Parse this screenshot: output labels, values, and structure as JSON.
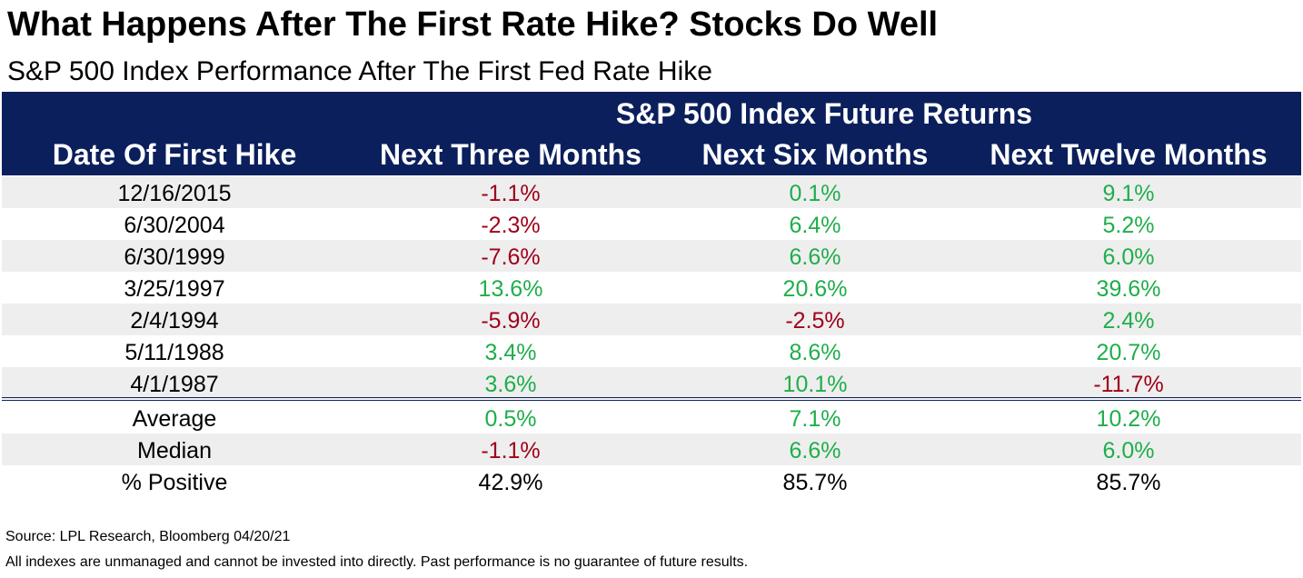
{
  "chart_data": {
    "type": "table",
    "title": "What Happens After The First Rate Hike? Stocks Do Well",
    "subtitle": "S&P 500 Index Performance After The First Fed Rate Hike",
    "group_header": "S&P 500 Index Future Returns",
    "columns": [
      "Date Of First Hike",
      "Next Three Months",
      "Next Six Months",
      "Next Twelve Months"
    ],
    "rows": [
      [
        "12/16/2015",
        "-1.1%",
        "0.1%",
        "9.1%"
      ],
      [
        "6/30/2004",
        "-2.3%",
        "6.4%",
        "5.2%"
      ],
      [
        "6/30/1999",
        "-7.6%",
        "6.6%",
        "6.0%"
      ],
      [
        "3/25/1997",
        "13.6%",
        "20.6%",
        "39.6%"
      ],
      [
        "2/4/1994",
        "-5.9%",
        "-2.5%",
        "2.4%"
      ],
      [
        "5/11/1988",
        "3.4%",
        "8.6%",
        "20.7%"
      ],
      [
        "4/1/1987",
        "3.6%",
        "10.1%",
        "-11.7%"
      ]
    ],
    "summary_rows": [
      [
        "Average",
        "0.5%",
        "7.1%",
        "10.2%"
      ],
      [
        "Median",
        "-1.1%",
        "6.6%",
        "6.0%"
      ],
      [
        "% Positive",
        "42.9%",
        "85.7%",
        "85.7%"
      ]
    ],
    "colors": {
      "header_bg": "#0b1f5c",
      "positive": "#1fae4a",
      "negative": "#a0001a",
      "neutral": "#000000",
      "shade": "#eeeeee"
    }
  },
  "footer": {
    "source": "Source: LPL Research, Bloomberg 04/20/21",
    "disclaimer": "All indexes are unmanaged and cannot be invested into directly. Past performance is no guarantee of future results."
  }
}
